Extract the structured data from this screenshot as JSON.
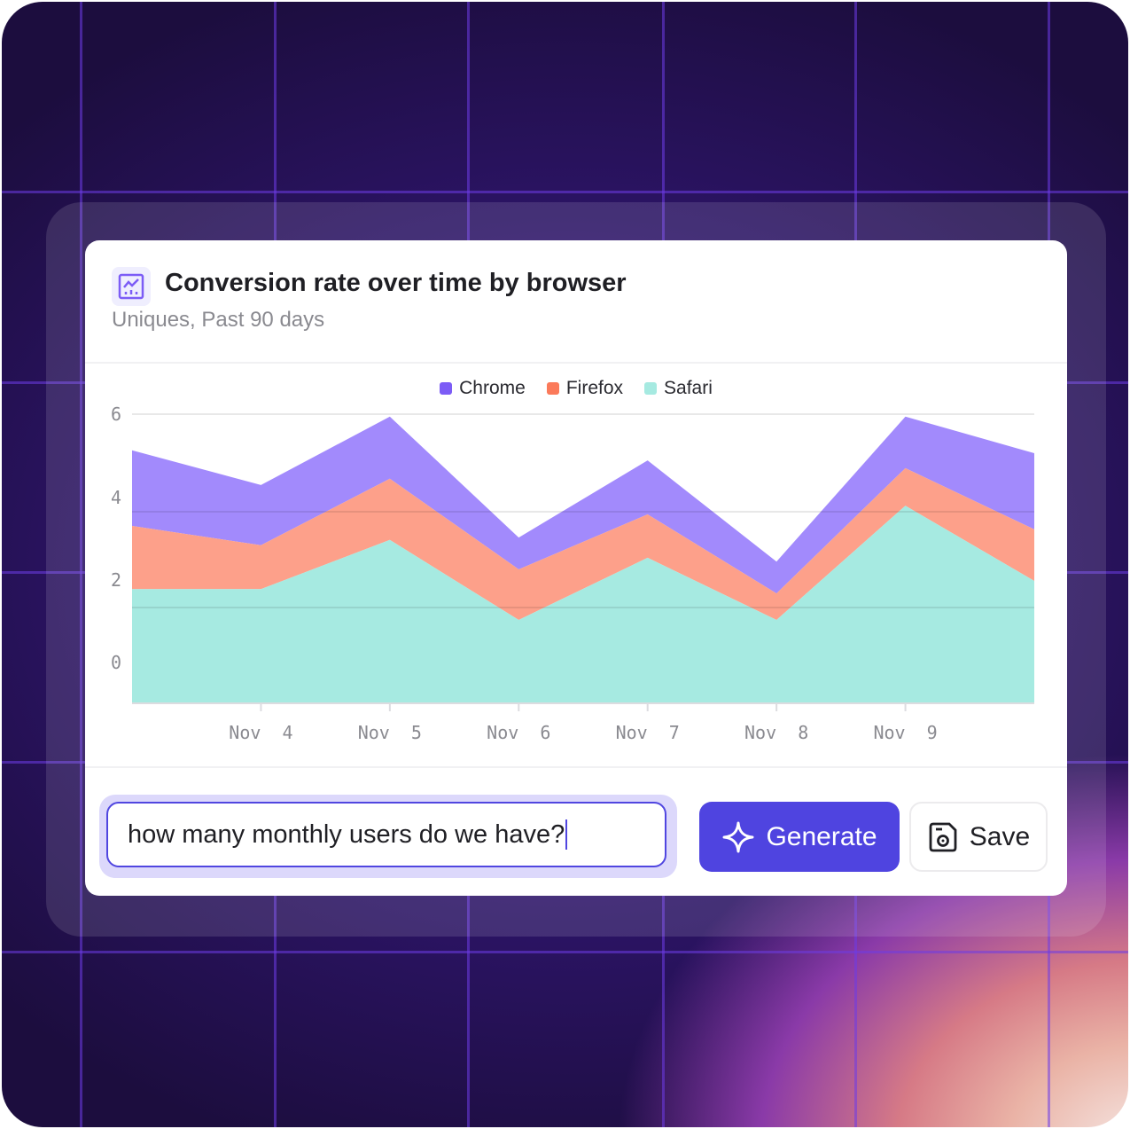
{
  "card": {
    "title": "Conversion rate over time by browser",
    "subtitle": "Uniques, Past 90 days",
    "icon": "line-chart-icon"
  },
  "chart_data": {
    "type": "area",
    "stacked": true,
    "title": "Conversion rate over time by browser",
    "subtitle": "Uniques, Past 90 days",
    "categories": [
      "",
      "Nov 4",
      "Nov 5",
      "Nov 6",
      "Nov 7",
      "Nov 8",
      "Nov 9",
      ""
    ],
    "y_ticks": [
      "6",
      "4",
      "2",
      "0"
    ],
    "ylim": [
      0,
      6
    ],
    "grid": true,
    "legend_position": "top",
    "series": [
      {
        "name": "Safari",
        "color": "#a6eae1",
        "values": [
          2.37,
          2.37,
          3.39,
          1.73,
          3.02,
          1.73,
          4.1,
          2.54
        ]
      },
      {
        "name": "Firefox",
        "color": "#fda08a",
        "values": [
          1.31,
          0.91,
          1.27,
          1.05,
          0.9,
          0.55,
          0.78,
          1.07
        ]
      },
      {
        "name": "Chrome",
        "color": "#a28afc",
        "values": [
          1.57,
          1.25,
          1.29,
          0.66,
          1.12,
          0.66,
          1.07,
          1.58
        ]
      }
    ]
  },
  "legend": [
    {
      "name": "Chrome",
      "color": "#7c5cf6"
    },
    {
      "name": "Firefox",
      "color": "#fb7a5a"
    },
    {
      "name": "Safari",
      "color": "#a6eae1"
    }
  ],
  "query": {
    "value": "how many monthly users do we have?"
  },
  "buttons": {
    "generate": "Generate",
    "save": "Save"
  },
  "colors": {
    "accent": "#4f44e0"
  }
}
